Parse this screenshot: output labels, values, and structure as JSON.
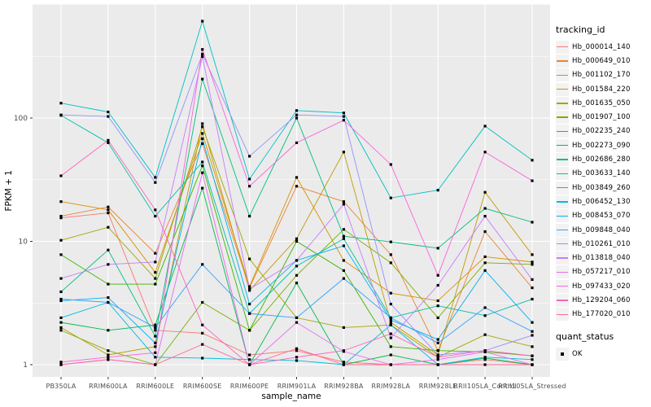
{
  "figure": {
    "background": "#FFFFFF",
    "panel_bg": "#EBEBEB",
    "grid_color": "#FFFFFF",
    "tick_label_color": "#4D4D4D",
    "tick_mark_color": "#333333",
    "axis_title_color": "#000000"
  },
  "chart_data": {
    "type": "line",
    "title": "",
    "xlabel": "sample_name",
    "ylabel": "FPKM + 1",
    "yscale": "log10",
    "ylim": [
      0.95,
      700
    ],
    "yticks": [
      1,
      10,
      100
    ],
    "ytick_labels": [
      "1",
      "10",
      "100"
    ],
    "yminor": [
      3.162,
      31.623,
      316.23
    ],
    "grid": true,
    "legend_position": "right",
    "legend_title": "tracking_id",
    "legend2_title": "quant_status",
    "legend2_items": [
      {
        "label": "OK",
        "marker": "square",
        "color": "#000000"
      }
    ],
    "marker": {
      "shape": "square",
      "color": "#000000",
      "size": 3.2
    },
    "categories": [
      "PB350LA",
      "RRIM600LA",
      "RRIM600LE",
      "RRIM600SE",
      "RRIM600PE",
      "RRIM901LA",
      "RRIM928BA",
      "RRIM928LA",
      "RRIM928LE",
      "RRII105LA_Control",
      "RRII105LA_Stressed"
    ],
    "series": [
      {
        "name": "Hb_000014_140",
        "color": "#F8766D",
        "values": [
          15.5,
          17,
          1.9,
          1.8,
          1.2,
          1.3,
          1.05,
          1.0,
          1.0,
          1.1,
          1.0
        ]
      },
      {
        "name": "Hb_000649_010",
        "color": "#EA8331",
        "values": [
          16,
          19,
          8.0,
          62,
          4.2,
          28,
          21,
          7.8,
          1.3,
          12,
          4.2
        ]
      },
      {
        "name": "Hb_001102_170",
        "color": "#D89000",
        "values": [
          21,
          18,
          5.6,
          75,
          4.3,
          33,
          7.0,
          3.8,
          3.3,
          7.5,
          6.8
        ]
      },
      {
        "name": "Hb_001584_220",
        "color": "#C09B00",
        "values": [
          2.0,
          1.2,
          1.4,
          90,
          4.0,
          10.5,
          53,
          2.2,
          1.2,
          25,
          7.8
        ]
      },
      {
        "name": "Hb_001635_050",
        "color": "#A3A500",
        "values": [
          10.2,
          13,
          5.0,
          85,
          7.2,
          2.4,
          2.0,
          2.1,
          1.15,
          1.75,
          1.4
        ]
      },
      {
        "name": "Hb_001907_100",
        "color": "#7CAE00",
        "values": [
          1.9,
          1.3,
          1.0,
          3.2,
          1.9,
          5.3,
          12.5,
          6.7,
          2.4,
          6.7,
          6.5
        ]
      },
      {
        "name": "Hb_002235_240",
        "color": "#39B600",
        "values": [
          7.8,
          4.5,
          4.5,
          41,
          1.9,
          10,
          5.8,
          1.4,
          1.3,
          1.27,
          1.18
        ]
      },
      {
        "name": "Hb_002273_090",
        "color": "#00BB4E",
        "values": [
          2.2,
          1.9,
          2.1,
          27,
          1.0,
          4.6,
          1.0,
          1.2,
          1.0,
          1.13,
          1.0
        ]
      },
      {
        "name": "Hb_002686_280",
        "color": "#00BF7D",
        "values": [
          3.9,
          8.5,
          1.7,
          207,
          16,
          100,
          11,
          9.9,
          8.8,
          18.5,
          14.3
        ]
      },
      {
        "name": "Hb_003633_140",
        "color": "#00C1A3",
        "values": [
          105,
          63,
          16,
          44,
          2.6,
          6.3,
          10.5,
          2.4,
          3.0,
          2.5,
          3.4
        ]
      },
      {
        "name": "Hb_003849_260",
        "color": "#00BFC4",
        "values": [
          132,
          112,
          33,
          610,
          32,
          115,
          110,
          22.5,
          26,
          86,
          45.5
        ]
      },
      {
        "name": "Hb_006452_130",
        "color": "#00BAE0",
        "values": [
          2.4,
          3.2,
          1.15,
          1.13,
          1.1,
          1.08,
          1.0,
          2.1,
          1.0,
          1.15,
          1.1
        ]
      },
      {
        "name": "Hb_008453_070",
        "color": "#00B0F6",
        "values": [
          3.3,
          3.5,
          1.5,
          68,
          3.1,
          7.0,
          9.2,
          2.3,
          1.6,
          5.8,
          2.2
        ]
      },
      {
        "name": "Hb_009848_040",
        "color": "#35A2FF",
        "values": [
          3.4,
          3.2,
          2.0,
          6.5,
          2.6,
          2.4,
          5.0,
          2.4,
          1.5,
          2.9,
          1.86
        ]
      },
      {
        "name": "Hb_010261_010",
        "color": "#9590FF",
        "values": [
          106,
          103,
          30,
          330,
          49,
          106,
          103,
          3.1,
          1.2,
          1.3,
          1.73
        ]
      },
      {
        "name": "Hb_013818_040",
        "color": "#C77CFF",
        "values": [
          5.0,
          6.5,
          6.8,
          315,
          4.1,
          7.0,
          20,
          1.65,
          4.4,
          16,
          4.9
        ]
      },
      {
        "name": "Hb_057217_010",
        "color": "#E76BF3",
        "values": [
          1.0,
          1.1,
          1.0,
          36,
          1.0,
          2.2,
          1.28,
          1.0,
          1.1,
          1.27,
          1.0
        ]
      },
      {
        "name": "Hb_097433_020",
        "color": "#FA62DB",
        "values": [
          1.05,
          1.15,
          1.25,
          360,
          28,
          63,
          96,
          42,
          5.3,
          53,
          31
        ]
      },
      {
        "name": "Hb_129204_060",
        "color": "#FF62BC",
        "values": [
          34,
          66,
          18,
          2.1,
          1.0,
          1.15,
          1.3,
          1.78,
          1.15,
          1.3,
          1.18
        ]
      },
      {
        "name": "Hb_177020_010",
        "color": "#FF6A98",
        "values": [
          1.0,
          1.1,
          1.0,
          1.46,
          1.0,
          1.35,
          1.0,
          1.0,
          1.0,
          1.0,
          1.0
        ]
      }
    ]
  }
}
